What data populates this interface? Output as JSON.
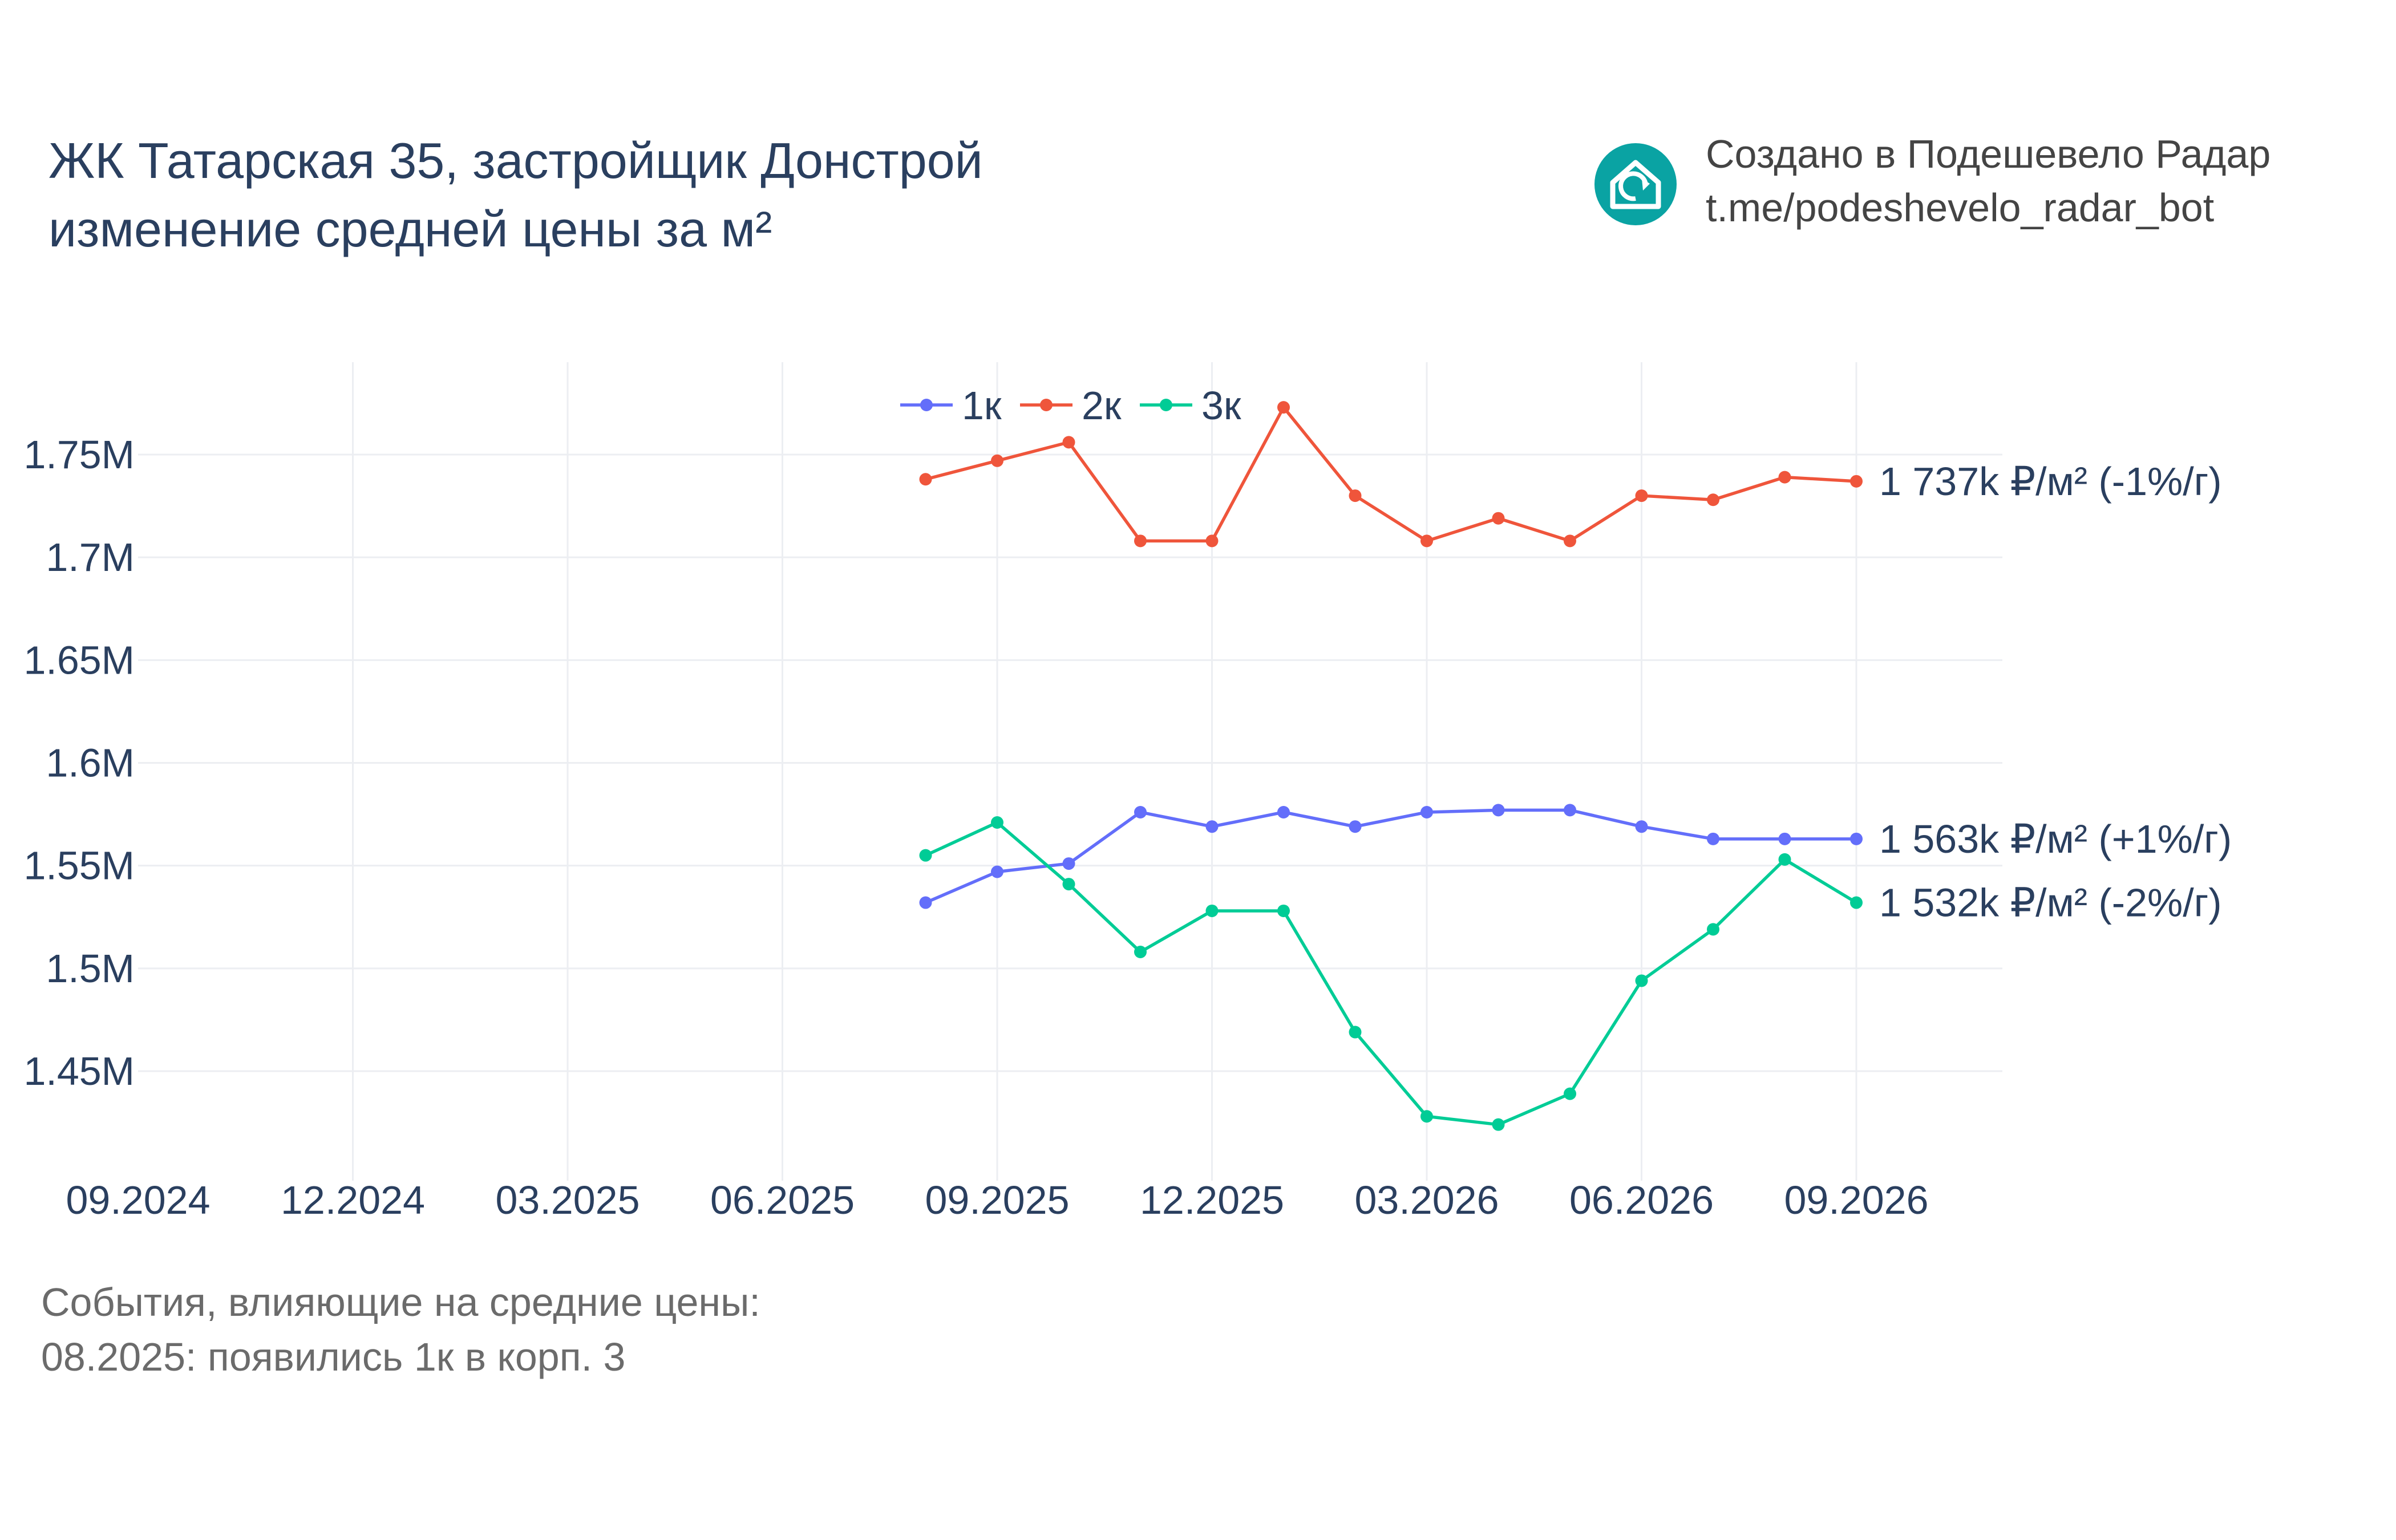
{
  "title": {
    "line1": "ЖК Татарская 35, застройщик Донстрой",
    "line2": "изменение средней цены за м²"
  },
  "credit": {
    "line1": "Создано в Подешевело Радар",
    "line2": "t.me/podeshevelo_radar_bot",
    "icon": "house-refresh-icon",
    "icon_color": "#0aa3a3"
  },
  "notes": {
    "line1": "События, влияющие на средние цены:",
    "line2": "08.2025: появились 1к в корп. 3"
  },
  "chart_data": {
    "type": "line",
    "x": [
      "2025-08",
      "2025-09",
      "2025-10",
      "2025-11",
      "2025-12",
      "2026-01",
      "2026-02",
      "2026-03",
      "2026-04",
      "2026-05",
      "2026-06",
      "2026-07",
      "2026-08",
      "2026-09"
    ],
    "xlim": [
      "2024-09",
      "2026-11"
    ],
    "xticks": [
      "2024-09",
      "2024-12",
      "2025-03",
      "2025-06",
      "2025-09",
      "2025-12",
      "2026-03",
      "2026-06",
      "2026-09"
    ],
    "xtick_labels": [
      "09.2024",
      "12.2024",
      "03.2025",
      "06.2025",
      "09.2025",
      "12.2025",
      "03.2026",
      "06.2026",
      "09.2026"
    ],
    "ylim": [
      1400000,
      1795000
    ],
    "yticks": [
      1450000,
      1500000,
      1550000,
      1600000,
      1650000,
      1700000,
      1750000
    ],
    "ytick_labels": [
      "1.45M",
      "1.5M",
      "1.55M",
      "1.6M",
      "1.65M",
      "1.7M",
      "1.75M"
    ],
    "grid": true,
    "legend_position": "top-center",
    "series": [
      {
        "name": "1к",
        "color": "#636efa",
        "values": [
          1532000,
          1547000,
          1551000,
          1576000,
          1569000,
          1576000,
          1569000,
          1576000,
          1577000,
          1577000,
          1569000,
          1563000,
          1563000,
          1563000
        ],
        "end_label": "1 563k ₽/м² (+1%/г)"
      },
      {
        "name": "2к",
        "color": "#ef553b",
        "values": [
          1738000,
          1747000,
          1756000,
          1708000,
          1708000,
          1773000,
          1730000,
          1708000,
          1719000,
          1708000,
          1730000,
          1728000,
          1739000,
          1737000
        ],
        "end_label": "1 737k ₽/м² (-1%/г)"
      },
      {
        "name": "3к",
        "color": "#00cc96",
        "values": [
          1555000,
          1571000,
          1541000,
          1508000,
          1528000,
          1528000,
          1469000,
          1428000,
          1424000,
          1439000,
          1494000,
          1519000,
          1553000,
          1532000
        ],
        "end_label": "1 532k ₽/м² (-2%/г)"
      }
    ]
  }
}
